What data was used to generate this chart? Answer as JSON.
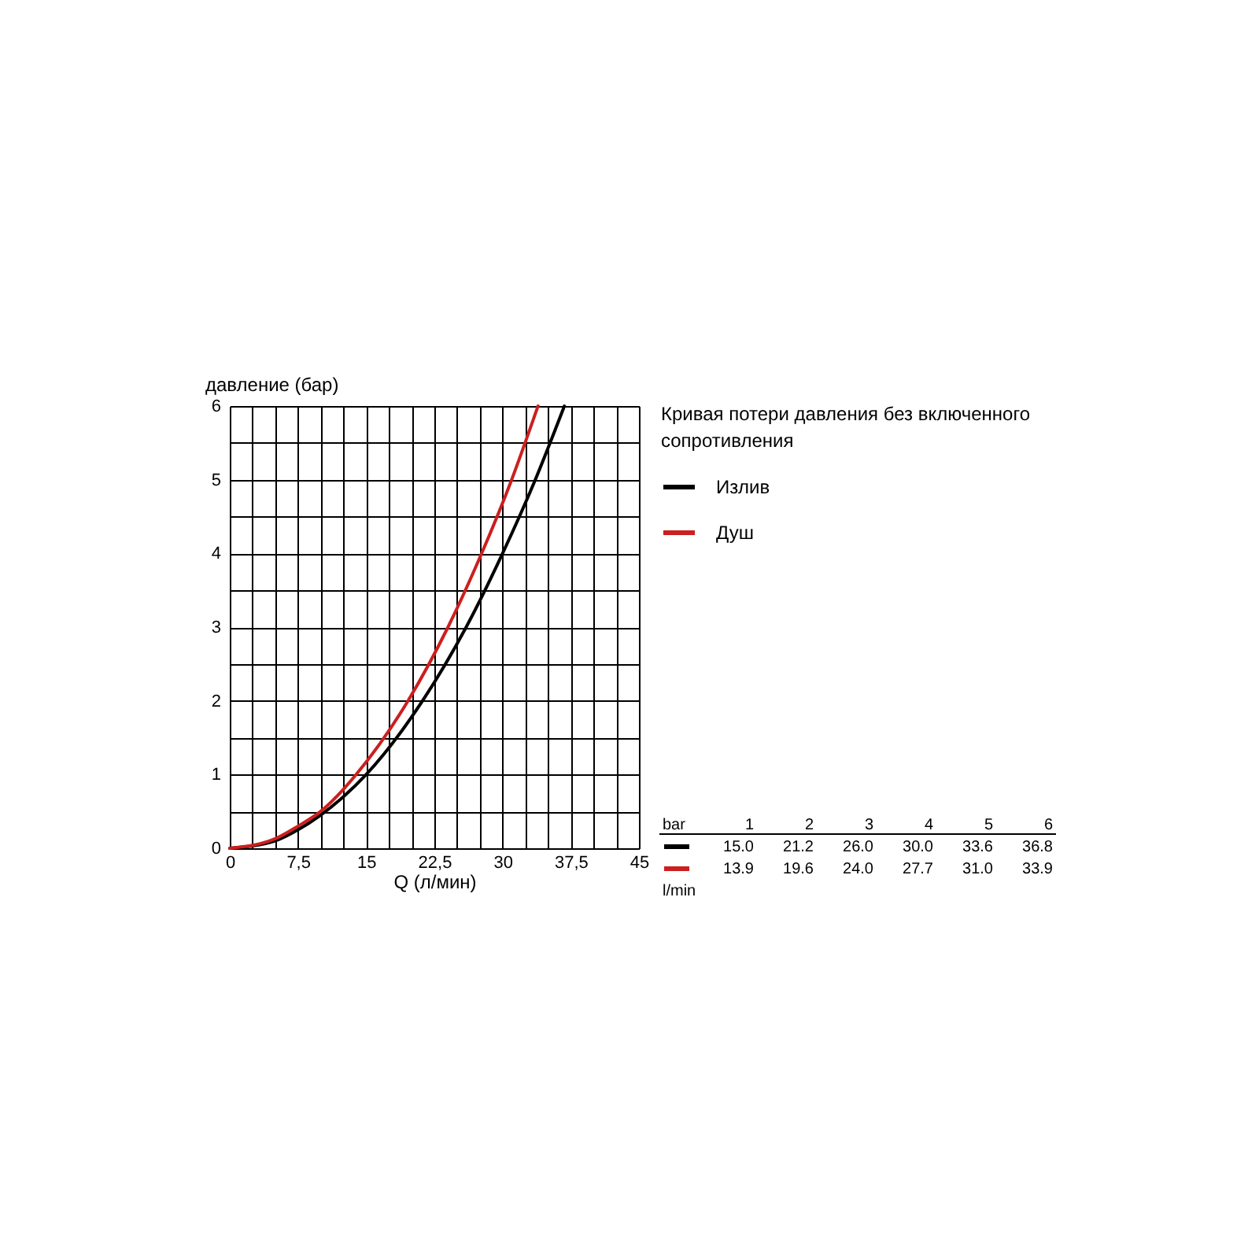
{
  "chart_data": {
    "type": "line",
    "xlabel": "Q (л/мин)",
    "ylabel": "давление (бар)",
    "legend_title": "Кривая потери давления без включенного сопротивления",
    "series": [
      {
        "name": "Излив",
        "color": "#000000",
        "x": [
          0,
          5,
          7.5,
          10,
          12.5,
          15.0,
          21.2,
          26.0,
          30.0,
          33.6,
          36.8
        ],
        "values": [
          0,
          0.1,
          0.25,
          0.45,
          0.7,
          1,
          2,
          3,
          4,
          5,
          6
        ]
      },
      {
        "name": "Душ",
        "color": "#cc1f1f",
        "x": [
          0,
          5,
          7.5,
          10,
          12.5,
          13.9,
          19.6,
          24.0,
          27.7,
          31.0,
          33.9
        ],
        "values": [
          0,
          0.13,
          0.3,
          0.5,
          0.8,
          1,
          2,
          3,
          4,
          5,
          6
        ]
      }
    ],
    "xlim": [
      0,
      45
    ],
    "xticks": [
      0,
      {
        "value": 2.5,
        "label": null
      },
      {
        "value": 5,
        "label": null
      },
      {
        "value": 7.5,
        "label": "7,5"
      },
      {
        "value": 10,
        "label": null
      },
      {
        "value": 12.5,
        "label": null
      },
      15,
      {
        "value": 17.5,
        "label": null
      },
      {
        "value": 20,
        "label": null
      },
      {
        "value": 22.5,
        "label": "22,5"
      },
      {
        "value": 25,
        "label": null
      },
      {
        "value": 27.5,
        "label": null
      },
      30,
      {
        "value": 32.5,
        "label": null
      },
      {
        "value": 35,
        "label": null
      },
      {
        "value": 37.5,
        "label": "37,5"
      },
      {
        "value": 40,
        "label": null
      },
      {
        "value": 42.5,
        "label": null
      },
      45
    ],
    "ylim": [
      0,
      6
    ],
    "yticks": [
      0,
      {
        "value": 0.5,
        "label": null
      },
      1,
      {
        "value": 1.5,
        "label": null
      },
      2,
      {
        "value": 2.5,
        "label": null
      },
      3,
      {
        "value": 3.5,
        "label": null
      },
      4,
      {
        "value": 4.5,
        "label": null
      },
      5,
      {
        "value": 5.5,
        "label": null
      },
      6
    ],
    "grid": true,
    "legend": "right",
    "annotations": [
      "bar",
      "1",
      "2",
      "3",
      "4",
      "5",
      "6",
      "15.0",
      "21.2",
      "26.0",
      "30.0",
      "33.6",
      "36.8",
      "13.9",
      "19.6",
      "24.0",
      "27.7",
      "31.0",
      "33.9",
      "l/min"
    ]
  }
}
